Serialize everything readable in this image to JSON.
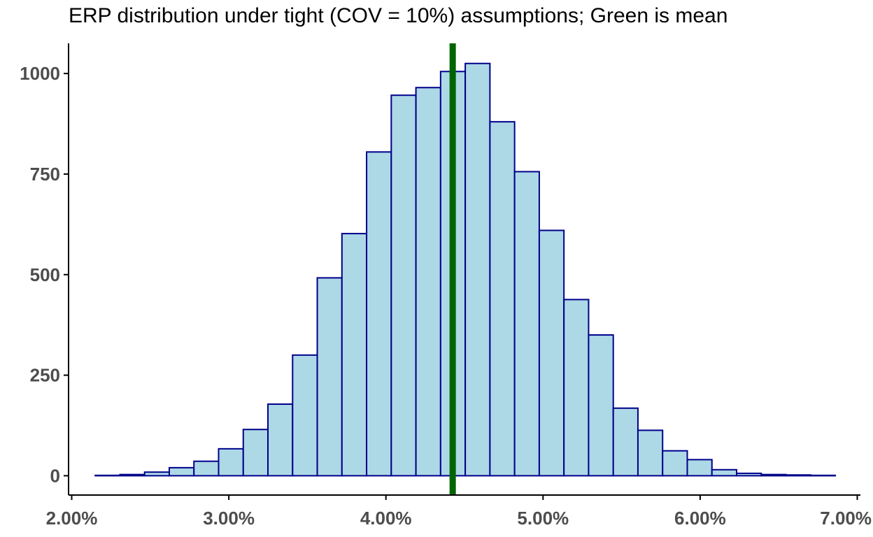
{
  "chart_data": {
    "type": "bar",
    "subtype": "histogram",
    "title": "ERP distribution under tight (COV = 10%) assumptions; Green is mean",
    "xlabel": "",
    "ylabel": "",
    "x_unit": "percent",
    "xlim": [
      1.98,
      7.02
    ],
    "ylim": [
      -48,
      1075
    ],
    "bin_width": 0.157,
    "bin_edges_start": 2.15,
    "counts": [
      1,
      3,
      9,
      20,
      36,
      67,
      115,
      178,
      300,
      492,
      602,
      805,
      946,
      965,
      1005,
      1025,
      880,
      756,
      610,
      438,
      350,
      168,
      113,
      62,
      40,
      15,
      6,
      3,
      2,
      1
    ],
    "mean": 4.425,
    "x_ticks": [
      "2.00%",
      "3.00%",
      "4.00%",
      "5.00%",
      "6.00%",
      "7.00%"
    ],
    "x_tick_values": [
      2.0,
      3.0,
      4.0,
      5.0,
      6.0,
      7.0
    ],
    "y_ticks": [
      "0",
      "250",
      "500",
      "750",
      "1000"
    ],
    "y_tick_values": [
      0,
      250,
      500,
      750,
      1000
    ],
    "grid": false,
    "legend": "none",
    "colors": {
      "bar_fill": "#add8e6",
      "bar_stroke": "#00008b",
      "mean_line": "#006400",
      "axis": "#000000",
      "tick_label": "#4d4d4d"
    }
  }
}
